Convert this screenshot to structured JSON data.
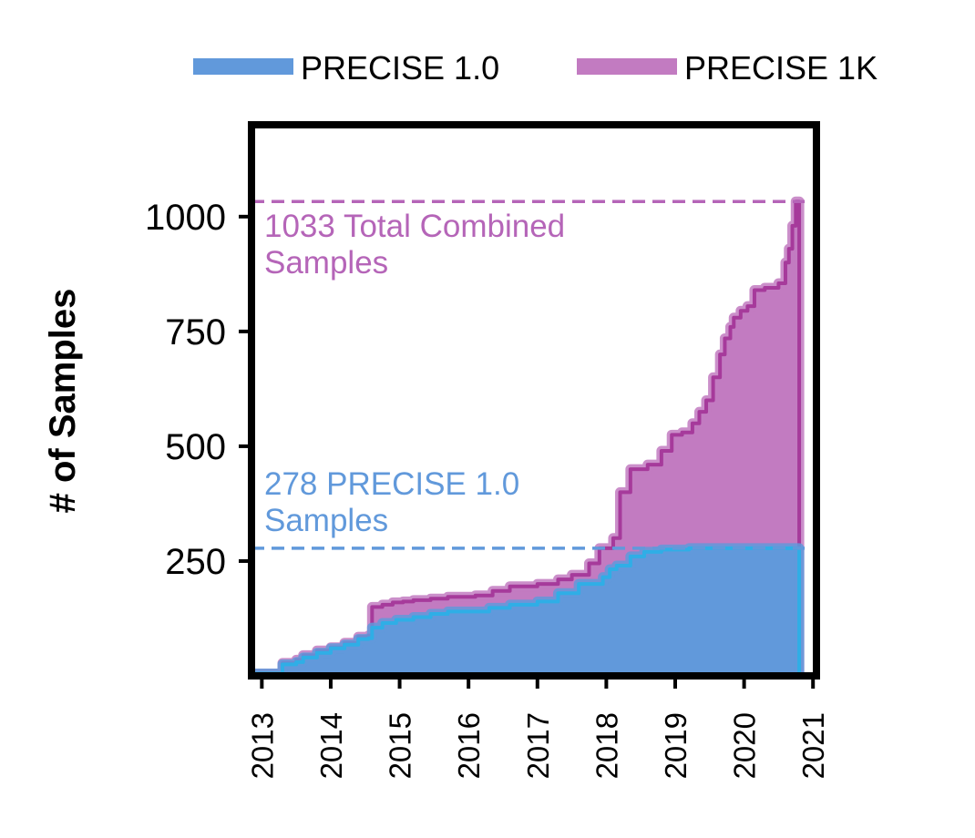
{
  "chart_data": {
    "type": "area",
    "ylabel": "# of Samples",
    "xlabel": "",
    "xlim": [
      2012.85,
      2021.05
    ],
    "ylim": [
      0,
      1200
    ],
    "x_ticks": [
      "2013",
      "2014",
      "2015",
      "2016",
      "2017",
      "2018",
      "2019",
      "2020",
      "2021"
    ],
    "y_ticks": [
      "250",
      "500",
      "750",
      "1000"
    ],
    "legend_position": "top",
    "series": [
      {
        "name": "PRECISE 1.0",
        "fill_color": "#6199db",
        "line_color": "#2faee6",
        "points": [
          [
            2012.9,
            5
          ],
          [
            2013.25,
            5
          ],
          [
            2013.3,
            25
          ],
          [
            2013.5,
            30
          ],
          [
            2013.6,
            40
          ],
          [
            2013.8,
            50
          ],
          [
            2014.0,
            60
          ],
          [
            2014.2,
            68
          ],
          [
            2014.4,
            80
          ],
          [
            2014.55,
            82
          ],
          [
            2014.6,
            105
          ],
          [
            2014.75,
            115
          ],
          [
            2014.95,
            122
          ],
          [
            2015.2,
            128
          ],
          [
            2015.45,
            135
          ],
          [
            2015.7,
            140
          ],
          [
            2016.3,
            148
          ],
          [
            2016.6,
            155
          ],
          [
            2017.0,
            162
          ],
          [
            2017.3,
            180
          ],
          [
            2017.6,
            200
          ],
          [
            2017.95,
            215
          ],
          [
            2018.05,
            232
          ],
          [
            2018.15,
            240
          ],
          [
            2018.35,
            260
          ],
          [
            2018.55,
            270
          ],
          [
            2018.8,
            275
          ],
          [
            2019.2,
            278
          ],
          [
            2020.0,
            278
          ],
          [
            2020.75,
            278
          ],
          [
            2020.8,
            5
          ]
        ]
      },
      {
        "name": "PRECISE 1K",
        "fill_color": "#c27bc1",
        "line_color": "#a63a9b",
        "points": [
          [
            2012.9,
            5
          ],
          [
            2013.25,
            5
          ],
          [
            2013.3,
            28
          ],
          [
            2013.5,
            35
          ],
          [
            2013.6,
            45
          ],
          [
            2013.8,
            55
          ],
          [
            2014.0,
            62
          ],
          [
            2014.2,
            72
          ],
          [
            2014.4,
            85
          ],
          [
            2014.55,
            88
          ],
          [
            2014.6,
            150
          ],
          [
            2014.75,
            155
          ],
          [
            2014.9,
            160
          ],
          [
            2015.05,
            162
          ],
          [
            2015.2,
            165
          ],
          [
            2015.45,
            168
          ],
          [
            2015.7,
            172
          ],
          [
            2016.1,
            175
          ],
          [
            2016.35,
            185
          ],
          [
            2016.6,
            195
          ],
          [
            2017.0,
            200
          ],
          [
            2017.3,
            210
          ],
          [
            2017.5,
            220
          ],
          [
            2017.75,
            245
          ],
          [
            2017.9,
            278
          ],
          [
            2018.1,
            300
          ],
          [
            2018.2,
            400
          ],
          [
            2018.35,
            450
          ],
          [
            2018.6,
            460
          ],
          [
            2018.8,
            490
          ],
          [
            2018.95,
            525
          ],
          [
            2019.1,
            530
          ],
          [
            2019.25,
            550
          ],
          [
            2019.35,
            575
          ],
          [
            2019.45,
            600
          ],
          [
            2019.55,
            650
          ],
          [
            2019.65,
            700
          ],
          [
            2019.72,
            735
          ],
          [
            2019.8,
            760
          ],
          [
            2019.85,
            780
          ],
          [
            2019.95,
            795
          ],
          [
            2020.05,
            805
          ],
          [
            2020.15,
            840
          ],
          [
            2020.3,
            845
          ],
          [
            2020.5,
            855
          ],
          [
            2020.6,
            900
          ],
          [
            2020.65,
            930
          ],
          [
            2020.7,
            980
          ],
          [
            2020.75,
            1033
          ],
          [
            2020.8,
            5
          ]
        ]
      }
    ],
    "reference_lines": [
      {
        "y": 1033,
        "color": "#b565b8"
      },
      {
        "y": 278,
        "color": "#6199db"
      }
    ],
    "annotations": [
      {
        "lines": [
          "1033 Total Combined",
          "Samples"
        ],
        "color": "#b565b8"
      },
      {
        "lines": [
          "278 PRECISE 1.0",
          "Samples"
        ],
        "color": "#6199db"
      }
    ]
  }
}
